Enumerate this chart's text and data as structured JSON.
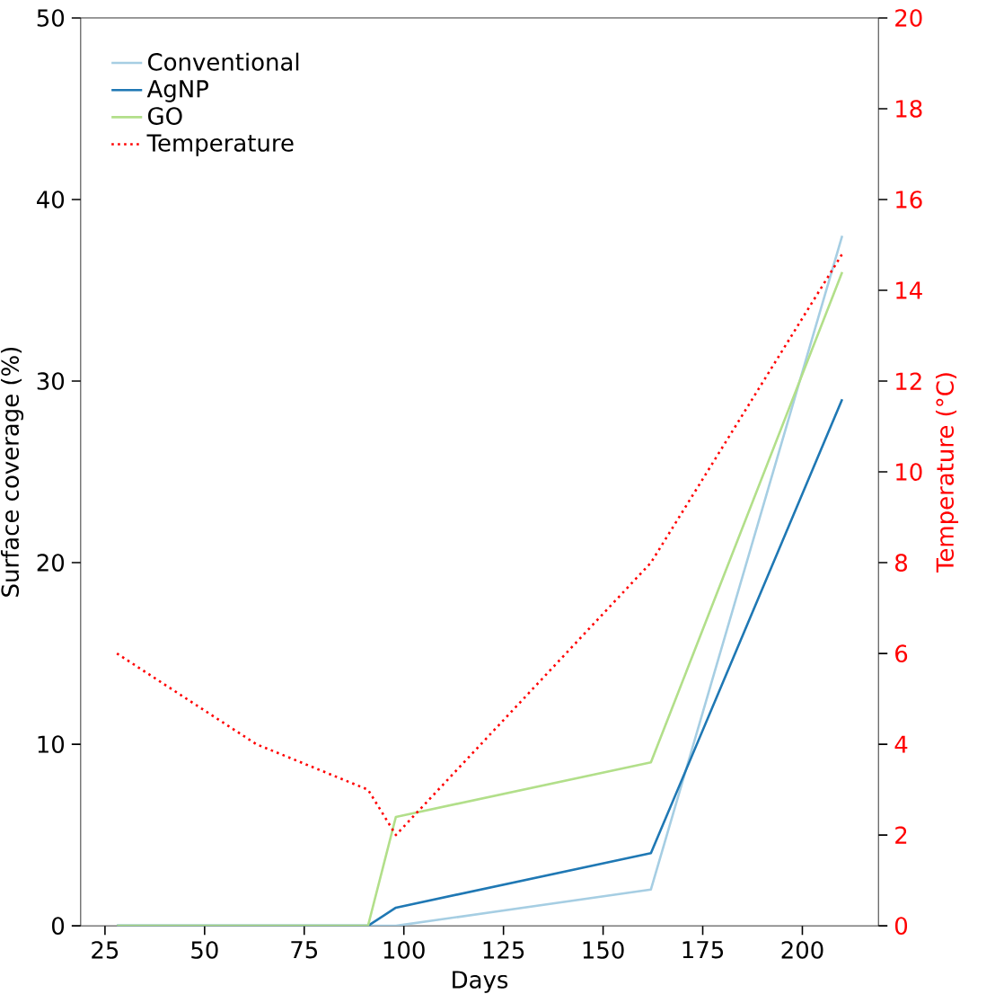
{
  "chart_data": {
    "type": "line",
    "xlabel": "Days",
    "ylabel": "Surface coverage (%)",
    "y2label": "Temperature (°C)",
    "xlim": [
      18.9,
      219.1
    ],
    "xticks": [
      25,
      50,
      75,
      100,
      125,
      150,
      175,
      200
    ],
    "ylim": [
      0,
      50
    ],
    "yticks": [
      0,
      10,
      20,
      30,
      40,
      50
    ],
    "y2lim": [
      0,
      20
    ],
    "y2ticks": [
      0,
      2,
      4,
      6,
      8,
      10,
      12,
      14,
      16,
      18,
      20
    ],
    "x": [
      28,
      63,
      91,
      98,
      162,
      210
    ],
    "series": [
      {
        "name": "Conventional",
        "color": "#a6cee3",
        "values": [
          0,
          0,
          0,
          0,
          2,
          38
        ]
      },
      {
        "name": "AgNP",
        "color": "#1f78b4",
        "values": [
          0,
          0,
          0,
          1,
          4,
          29
        ]
      },
      {
        "name": "GO",
        "color": "#b2df8a",
        "values": [
          0,
          0,
          0,
          6,
          9,
          36
        ]
      },
      {
        "name": "Temperature",
        "color": "#ff0000",
        "values": [
          6,
          4,
          3,
          2,
          8,
          14.8
        ],
        "axis": "y2",
        "line_style": "dotted"
      }
    ],
    "legend": "top left",
    "grid": false,
    "marker": "none"
  }
}
